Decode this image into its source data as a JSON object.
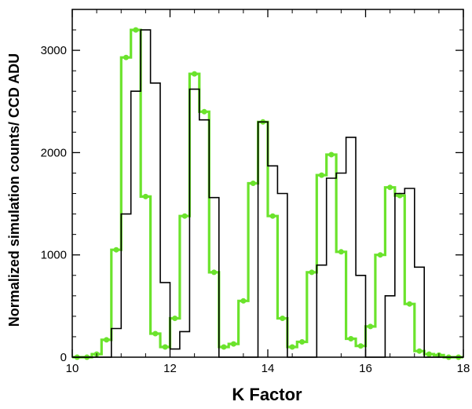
{
  "chart_data": {
    "type": "line",
    "xlabel": "K Factor",
    "ylabel": "Normalized simulation counts/ CCD ADU",
    "xlim": [
      10,
      18
    ],
    "ylim": [
      0,
      3400
    ],
    "xticks": [
      "10",
      "12",
      "14",
      "16",
      "18"
    ],
    "yticks": [
      "0",
      "1000",
      "2000",
      "3000"
    ],
    "grid": false,
    "step_width": 0.2,
    "series": [
      {
        "color": "#000000",
        "markers": false,
        "x": [
          10.0,
          10.2,
          10.4,
          10.6,
          10.8,
          11.0,
          11.2,
          11.4,
          11.6,
          11.8,
          12.0,
          12.2,
          12.4,
          12.6,
          12.8,
          13.0,
          13.2,
          13.4,
          13.6,
          13.8,
          14.0,
          14.2,
          14.4,
          14.6,
          14.8,
          15.0,
          15.2,
          15.4,
          15.6,
          15.8,
          16.0,
          16.2,
          16.4,
          16.6,
          16.8,
          17.0,
          17.2,
          17.4,
          17.6,
          17.8
        ],
        "y": [
          0,
          0,
          0,
          0,
          280,
          1400,
          2600,
          3200,
          2680,
          730,
          80,
          250,
          2620,
          2320,
          1560,
          0,
          0,
          0,
          0,
          2300,
          1870,
          1600,
          0,
          0,
          0,
          900,
          1750,
          1800,
          2150,
          800,
          0,
          0,
          600,
          1600,
          1650,
          880,
          0,
          0,
          0,
          0
        ]
      },
      {
        "color": "#6be32c",
        "markers": true,
        "x": [
          10.0,
          10.2,
          10.4,
          10.6,
          10.8,
          11.0,
          11.2,
          11.4,
          11.6,
          11.8,
          12.0,
          12.2,
          12.4,
          12.6,
          12.8,
          13.0,
          13.2,
          13.4,
          13.6,
          13.8,
          14.0,
          14.2,
          14.4,
          14.6,
          14.8,
          15.0,
          15.2,
          15.4,
          15.6,
          15.8,
          16.0,
          16.2,
          16.4,
          16.6,
          16.8,
          17.0,
          17.2,
          17.4,
          17.6,
          17.8
        ],
        "y": [
          0,
          0,
          30,
          170,
          1050,
          2930,
          3200,
          1570,
          230,
          100,
          380,
          1380,
          2770,
          2400,
          830,
          100,
          130,
          550,
          1700,
          2300,
          1380,
          380,
          100,
          150,
          830,
          1780,
          1980,
          1030,
          180,
          110,
          300,
          1000,
          1660,
          1580,
          520,
          60,
          30,
          20,
          0,
          0
        ]
      }
    ]
  }
}
